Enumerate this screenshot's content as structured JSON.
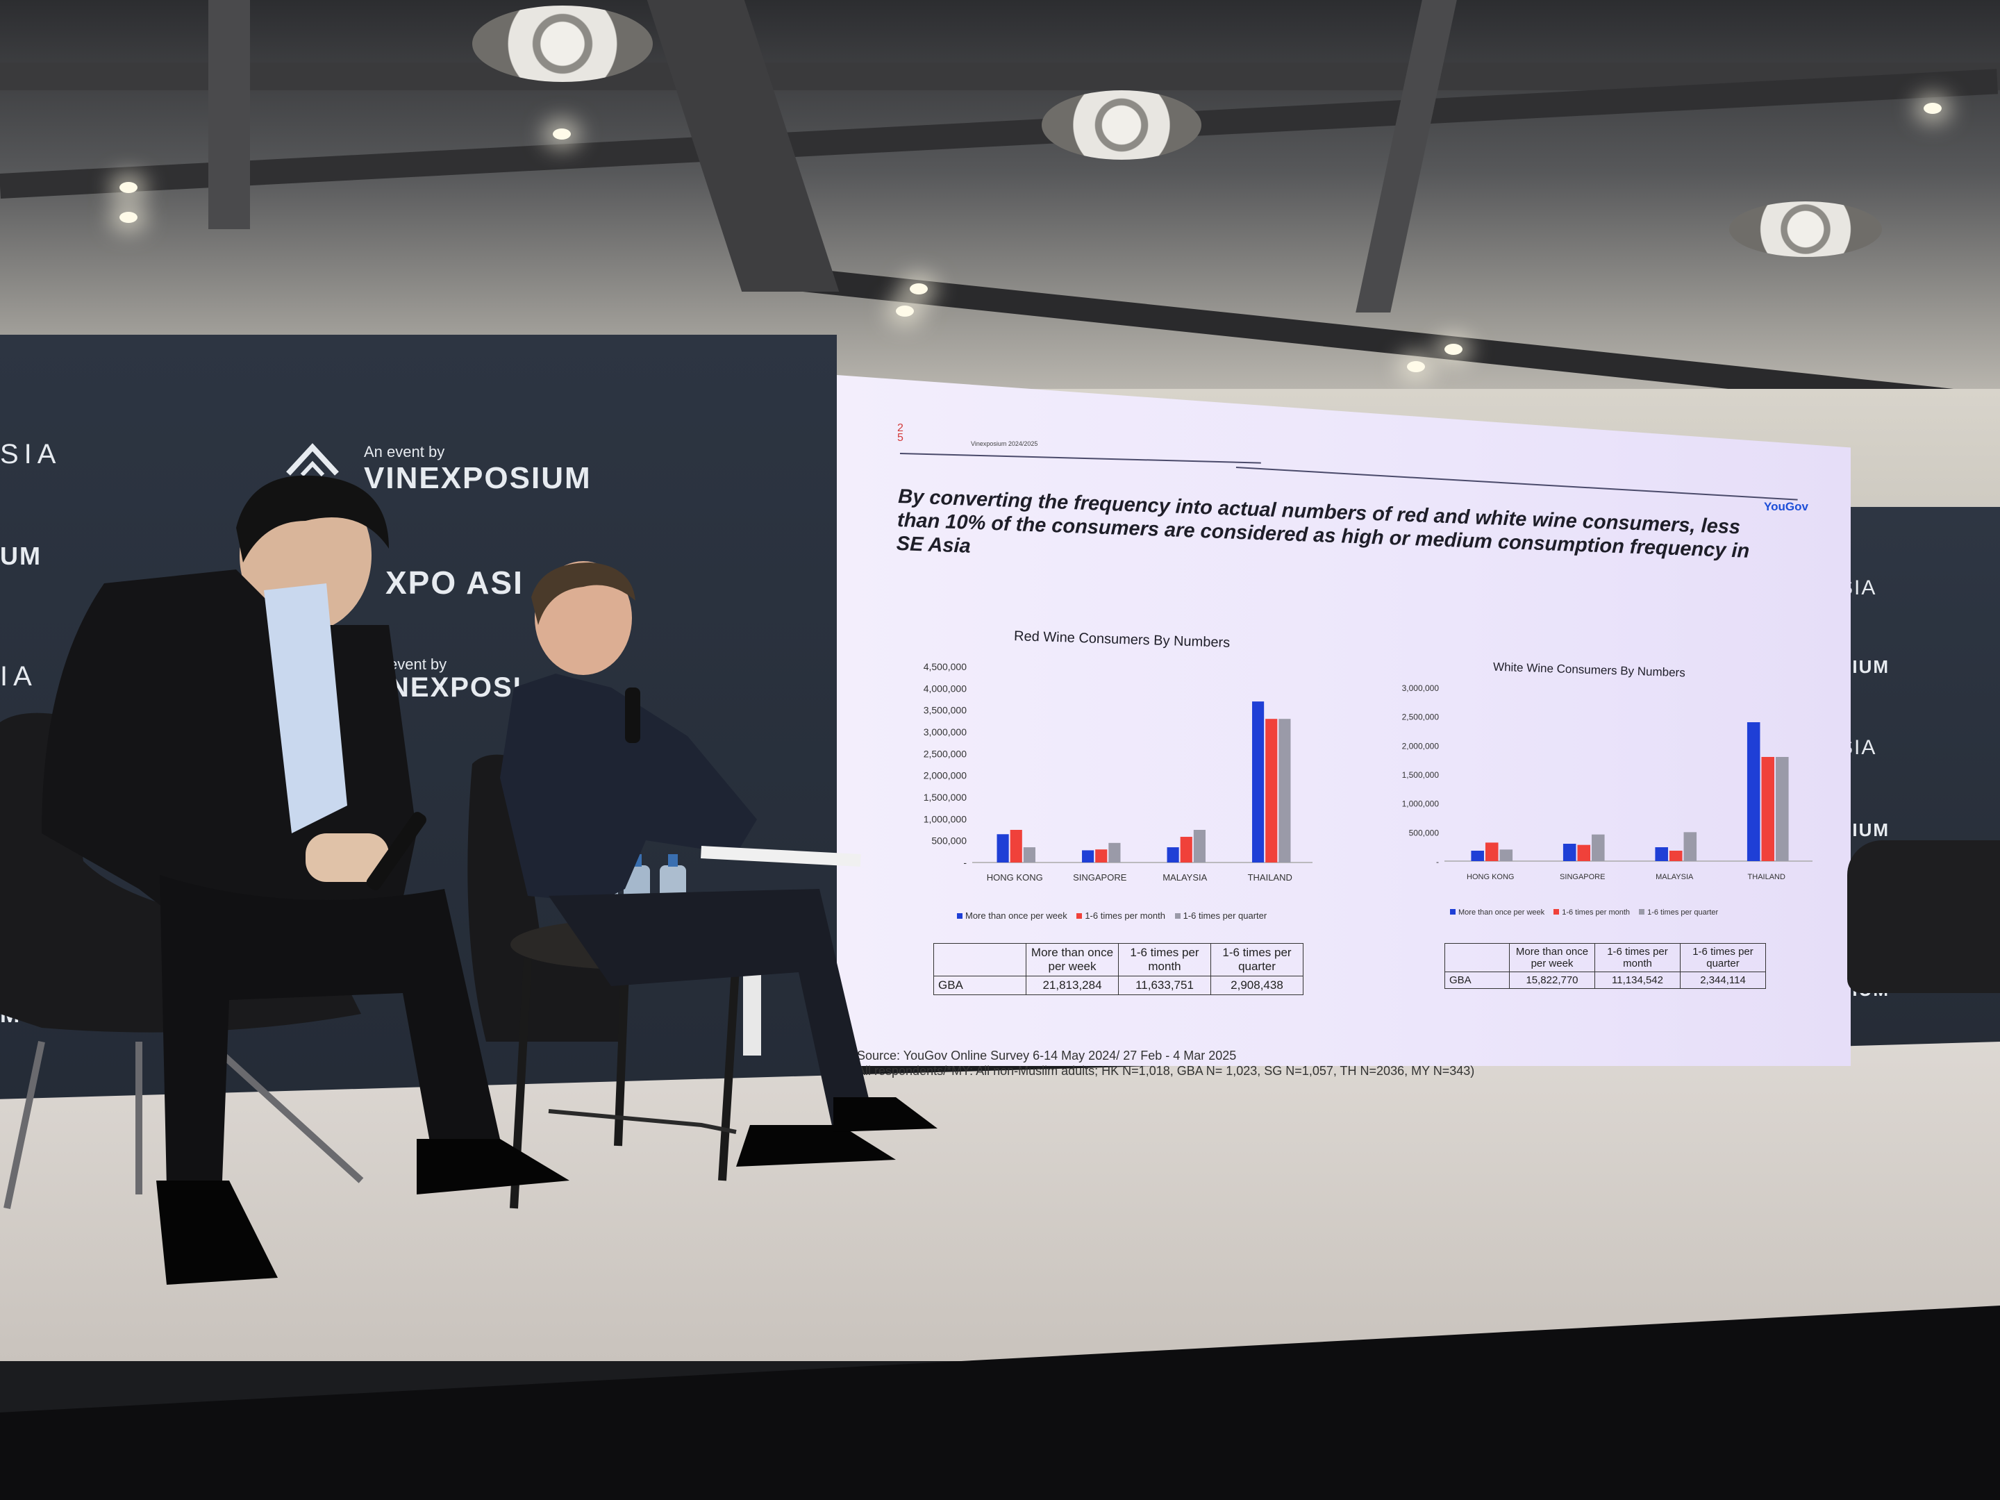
{
  "scene": {
    "description_tags": [
      "panel-discussion",
      "conference-stage",
      "projection-screen"
    ],
    "backdrop_brand": {
      "line1": "An event by",
      "line2": "VINEXPOSIUM",
      "line3": "XPO ASI",
      "line4": "event by",
      "line5": "NEXPOSI",
      "left_fragments": [
        "SIA",
        "UM",
        "IA",
        "M"
      ],
      "right_fragments": [
        "SIA",
        "SIUM",
        "SIA",
        "SIUM",
        "SIUM"
      ]
    }
  },
  "slide": {
    "page_number": "25",
    "header": "Vinexposium 2024/2025",
    "logo": "YouGov",
    "title": "By converting the frequency into actual numbers of red and white wine consumers, less than 10% of the consumers are considered as high or medium consumption frequency in SE Asia",
    "source_line1": "Source: YouGov Online Survey 6-14 May 2024/ 27 Feb - 4 Mar 2025",
    "source_line2": "All respondents/*MY: All non-Muslim adults; HK N=1,018, GBA N= 1,023, SG N=1,057, TH N=2036, MY N=343)",
    "colors": {
      "series1": "#1f3fd6",
      "series2": "#f0413a",
      "series3": "#9a9aa8"
    }
  },
  "chart_data": [
    {
      "type": "bar",
      "title": "Red Wine Consumers By Numbers",
      "categories": [
        "HONG KONG",
        "SINGAPORE",
        "MALAYSIA",
        "THAILAND"
      ],
      "series": [
        {
          "name": "More than once per week",
          "values": [
            650000,
            280000,
            350000,
            3700000
          ]
        },
        {
          "name": "1-6 times per month",
          "values": [
            750000,
            300000,
            590000,
            3300000
          ]
        },
        {
          "name": "1-6 times per quarter",
          "values": [
            350000,
            450000,
            750000,
            3300000
          ]
        }
      ],
      "yticks": [
        "4,500,000",
        "4,000,000",
        "3,500,000",
        "3,000,000",
        "2,500,000",
        "2,000,000",
        "1,500,000",
        "1,000,000",
        "500,000",
        "-"
      ],
      "ylim": [
        0,
        4500000
      ],
      "legend": "bottom",
      "table": {
        "headers": [
          "",
          "More than once per week",
          "1-6 times per month",
          "1-6 times per quarter"
        ],
        "row": [
          "GBA",
          "21,813,284",
          "11,633,751",
          "2,908,438"
        ]
      }
    },
    {
      "type": "bar",
      "title": "White Wine Consumers By Numbers",
      "categories": [
        "HONG KONG",
        "SINGAPORE",
        "MALAYSIA",
        "THAILAND"
      ],
      "series": [
        {
          "name": "More than once per week",
          "values": [
            180000,
            300000,
            240000,
            2400000
          ]
        },
        {
          "name": "1-6 times per month",
          "values": [
            320000,
            280000,
            180000,
            1800000
          ]
        },
        {
          "name": "1-6 times per quarter",
          "values": [
            200000,
            460000,
            500000,
            1800000
          ]
        }
      ],
      "yticks": [
        "3,000,000",
        "2,500,000",
        "2,000,000",
        "1,500,000",
        "1,000,000",
        "500,000",
        "-"
      ],
      "ylim": [
        0,
        3000000
      ],
      "legend": "bottom",
      "table": {
        "headers": [
          "",
          "More than once per week",
          "1-6 times per month",
          "1-6 times per quarter"
        ],
        "row": [
          "GBA",
          "15,822,770",
          "11,134,542",
          "2,344,114"
        ]
      }
    }
  ]
}
